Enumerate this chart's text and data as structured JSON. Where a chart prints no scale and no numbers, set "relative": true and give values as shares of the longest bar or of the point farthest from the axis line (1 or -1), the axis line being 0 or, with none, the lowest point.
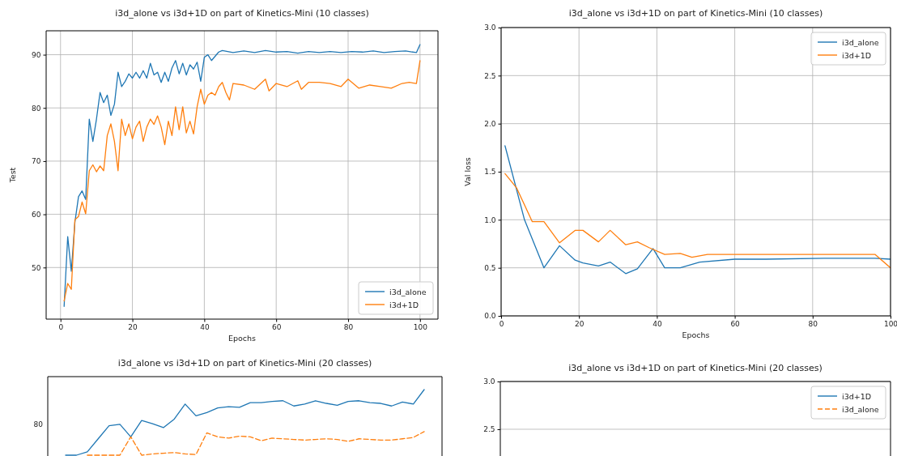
{
  "chart_data": [
    {
      "type": "line",
      "title": "i3d_alone vs i3d+1D on part of Kinetics-Mini (10 classes)",
      "xlabel": "Epochs",
      "ylabel": "Test",
      "xlim": [
        -4,
        105
      ],
      "ylim": [
        40.3,
        94.5
      ],
      "xticks": [
        0,
        20,
        40,
        60,
        80,
        100
      ],
      "yticks": [
        50,
        60,
        70,
        80,
        90
      ],
      "grid": true,
      "legend": "bottom right",
      "series": [
        {
          "name": "i3d_alone",
          "color": "#1f77b4",
          "x": [
            1,
            2,
            3,
            4,
            5,
            6,
            7,
            8,
            9,
            10,
            11,
            12,
            13,
            14,
            15,
            16,
            17,
            18,
            19,
            20,
            21,
            22,
            23,
            24,
            25,
            26,
            27,
            28,
            29,
            30,
            31,
            32,
            33,
            34,
            35,
            36,
            37,
            38,
            39,
            40,
            41,
            42,
            43,
            44,
            45,
            48,
            51,
            54,
            57,
            60,
            63,
            66,
            69,
            72,
            75,
            78,
            81,
            84,
            87,
            90,
            93,
            96,
            99,
            100
          ],
          "values": [
            42.7,
            55.8,
            49.3,
            58.5,
            63.3,
            64.4,
            62.8,
            77.9,
            73.7,
            77.9,
            82.9,
            81,
            82.4,
            78.6,
            80.7,
            86.7,
            84,
            85,
            86.4,
            85.6,
            86.7,
            85.6,
            87,
            85.6,
            88.4,
            86.2,
            86.7,
            84.8,
            86.7,
            85,
            87.5,
            88.9,
            86.4,
            88.4,
            86.2,
            88.1,
            87.3,
            88.6,
            85,
            89.5,
            90,
            88.9,
            89.7,
            90.5,
            90.8,
            90.4,
            90.7,
            90.4,
            90.8,
            90.5,
            90.6,
            90.3,
            90.6,
            90.4,
            90.6,
            90.4,
            90.6,
            90.5,
            90.7,
            90.4,
            90.6,
            90.7,
            90.4,
            91.9
          ]
        },
        {
          "name": "i3d+1D",
          "color": "#ff7f0e",
          "x": [
            1,
            2,
            3,
            4,
            5,
            6,
            7,
            8,
            9,
            10,
            11,
            12,
            13,
            14,
            15,
            16,
            17,
            18,
            19,
            20,
            21,
            22,
            23,
            24,
            25,
            26,
            27,
            28,
            29,
            30,
            31,
            32,
            33,
            34,
            35,
            36,
            37,
            38,
            39,
            40,
            41,
            42,
            43,
            44,
            45,
            46,
            47,
            48,
            51,
            54,
            57,
            58,
            60,
            63,
            66,
            67,
            69,
            72,
            75,
            78,
            80,
            83,
            86,
            89,
            92,
            95,
            97,
            99,
            100
          ],
          "values": [
            43.7,
            47,
            45.9,
            59,
            59.6,
            62.3,
            60.1,
            68.2,
            69.3,
            68,
            69.1,
            68.2,
            74.8,
            77,
            73.7,
            68.2,
            77.9,
            74.8,
            77,
            74.2,
            76.4,
            77.5,
            73.7,
            76.4,
            77.9,
            76.9,
            78.5,
            76.4,
            73.1,
            77.5,
            74.8,
            80.2,
            75.9,
            80.2,
            75.3,
            77.5,
            75.1,
            80.2,
            83.5,
            80.7,
            82.4,
            82.9,
            82.4,
            84,
            84.8,
            82.9,
            81.5,
            84.6,
            84.3,
            83.5,
            85.4,
            83.2,
            84.6,
            84,
            85.1,
            83.5,
            84.8,
            84.8,
            84.6,
            84,
            85.4,
            83.7,
            84.3,
            84,
            83.7,
            84.6,
            84.8,
            84.6,
            88.9
          ]
        }
      ]
    },
    {
      "type": "line",
      "title": "i3d_alone vs i3d+1D on part of Kinetics-Mini (10 classes)",
      "xlabel": "Epochs",
      "ylabel": "Val loss",
      "xlim": [
        0,
        100
      ],
      "ylim": [
        0,
        3
      ],
      "xticks": [
        0,
        20,
        40,
        60,
        80,
        100
      ],
      "yticks": [
        {
          "value": 0,
          "label": "0.0"
        },
        0.5,
        {
          "value": 1,
          "label": "1.0"
        },
        1.5,
        {
          "value": 2,
          "label": "2.0"
        },
        2.5,
        {
          "value": 3,
          "label": "3.0"
        }
      ],
      "grid": true,
      "legend": "top right",
      "series": [
        {
          "name": "i3d_alone",
          "color": "#1f77b4",
          "x": [
            1,
            6,
            11,
            15,
            19,
            21,
            25,
            28,
            32,
            35,
            39,
            42,
            46,
            51,
            60,
            68,
            83,
            96,
            100
          ],
          "values": [
            1.77,
            1.0,
            0.5,
            0.73,
            0.58,
            0.55,
            0.52,
            0.56,
            0.44,
            0.49,
            0.7,
            0.5,
            0.5,
            0.56,
            0.59,
            0.59,
            0.6,
            0.6,
            0.59
          ]
        },
        {
          "name": "i3d+1D",
          "color": "#ff7f0e",
          "x": [
            1,
            4,
            8,
            11,
            15,
            19,
            21,
            25,
            28,
            32,
            35,
            38,
            42,
            46,
            49,
            53,
            60,
            75,
            96,
            100
          ],
          "values": [
            1.48,
            1.33,
            0.98,
            0.98,
            0.76,
            0.89,
            0.89,
            0.77,
            0.89,
            0.74,
            0.77,
            0.71,
            0.64,
            0.65,
            0.61,
            0.64,
            0.64,
            0.64,
            0.64,
            0.5
          ]
        }
      ]
    },
    {
      "type": "line",
      "title": "i3d_alone vs i3d+1D on part of Kinetics-Mini (20 classes)",
      "categories": [
        null,
        null,
        null,
        null,
        null,
        null,
        null,
        null,
        null,
        null,
        null,
        null,
        null,
        null,
        null,
        null,
        null,
        null,
        null,
        null,
        null,
        null,
        null,
        null,
        null,
        null,
        null,
        null,
        null,
        null,
        null,
        null,
        null,
        null
      ],
      "relative": true,
      "tick_labels": false,
      "annotations": [
        "80"
      ],
      "series": [
        {
          "color": "#1f77b4",
          "values": [
            0,
            0,
            0.05,
            0.25,
            0.45,
            0.47,
            0.28,
            0.53,
            0.48,
            0.42,
            0.55,
            0.78,
            0.6,
            0.65,
            0.72,
            0.74,
            0.73,
            0.8,
            0.8,
            0.82,
            0.83,
            0.75,
            0.78,
            0.83,
            0.79,
            0.76,
            0.82,
            0.83,
            0.8,
            0.79,
            0.75,
            0.81,
            0.78,
            1
          ]
        },
        {
          "color": "#ff7f0e",
          "line_style": "dashed",
          "values": [
            null,
            null,
            0,
            0,
            0,
            0,
            0.28,
            0,
            0.02,
            0.03,
            0.04,
            0.02,
            0.01,
            0.34,
            0.28,
            0.26,
            0.29,
            0.28,
            0.22,
            0.26,
            0.25,
            0.24,
            0.23,
            0.24,
            0.25,
            0.24,
            0.21,
            0.25,
            0.24,
            0.23,
            0.23,
            0.25,
            0.27,
            0.36
          ]
        }
      ]
    },
    {
      "type": "line",
      "title": "i3d_alone vs i3d+1D on part of Kinetics-Mini (20 classes)",
      "ylim": [
        2.22,
        3
      ],
      "yticks": [
        {
          "value": 3,
          "label": "3.0"
        },
        2.5
      ],
      "grid": "y",
      "tick_labels": "y",
      "legend": "top right",
      "series": [
        {
          "name": "i3d+1D",
          "color": "#1f77b4"
        },
        {
          "name": "i3d_alone",
          "color": "#ff7f0e",
          "line_style": "dashed"
        }
      ]
    }
  ]
}
